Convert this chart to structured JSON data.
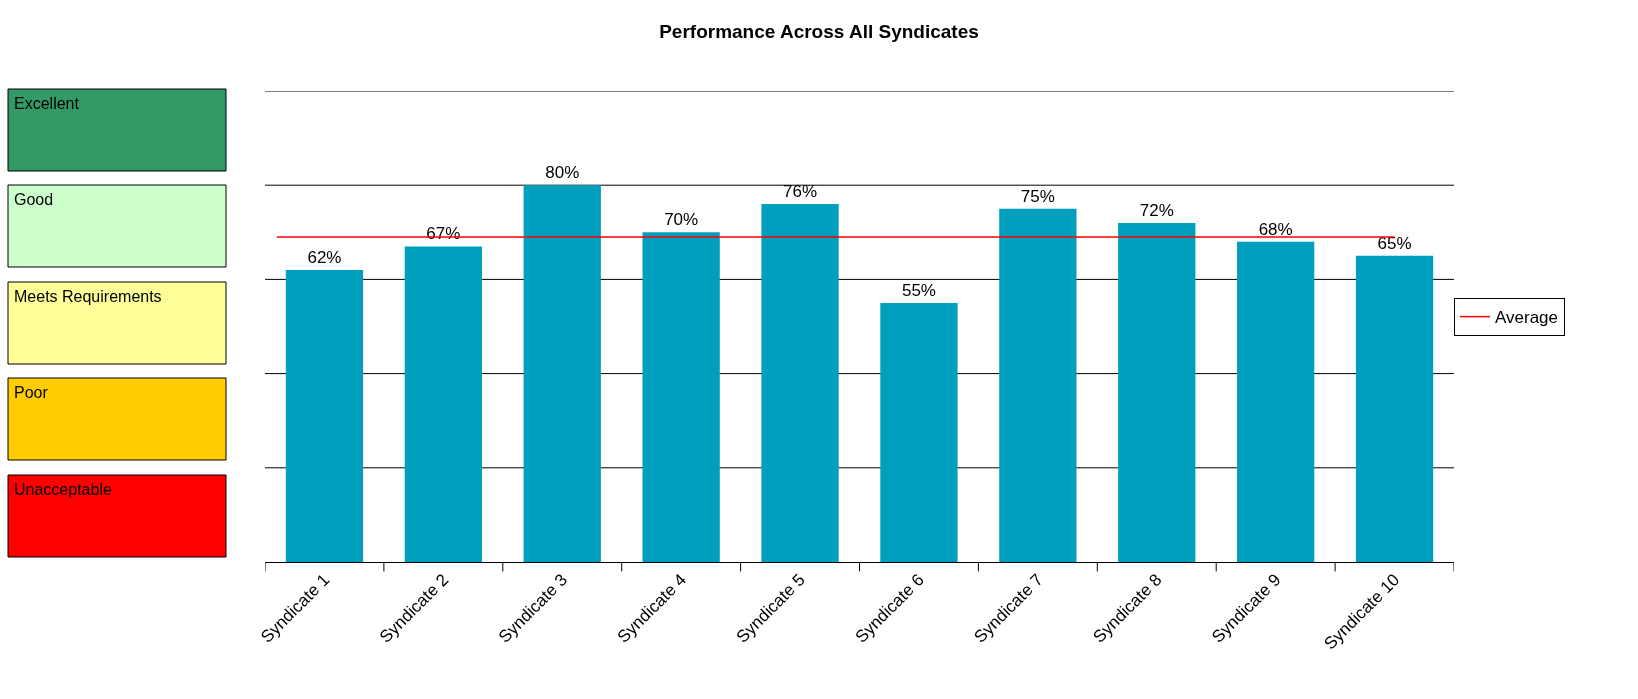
{
  "chart_data": {
    "type": "bar",
    "title": "Performance Across All Syndicates",
    "categories": [
      "Syndicate 1",
      "Syndicate 2",
      "Syndicate 3",
      "Syndicate 4",
      "Syndicate 5",
      "Syndicate 6",
      "Syndicate 7",
      "Syndicate 8",
      "Syndicate 9",
      "Syndicate 10"
    ],
    "values": [
      62,
      67,
      80,
      70,
      76,
      55,
      75,
      72,
      68,
      65
    ],
    "value_labels": [
      "62%",
      "67%",
      "80%",
      "70%",
      "76%",
      "55%",
      "75%",
      "72%",
      "68%",
      "65%"
    ],
    "color": "#009fbd",
    "ylim": [
      0,
      100
    ],
    "yticks": [
      {
        "value": 20,
        "label": null
      },
      {
        "value": 40,
        "label": null
      },
      {
        "value": 60,
        "label": null
      },
      {
        "value": 80,
        "label": null
      },
      {
        "value": 100,
        "label": null
      }
    ],
    "tick_labels": "x",
    "grid": "y",
    "ref_lines": [
      {
        "axis": "y",
        "value": 69,
        "label": "Average",
        "color": "#ff0000",
        "line_style": "solid"
      }
    ],
    "legend": "right",
    "annotations": [
      "Excellent",
      "Good",
      "Meets Requirements",
      "Poor",
      "Unacceptable"
    ]
  }
}
